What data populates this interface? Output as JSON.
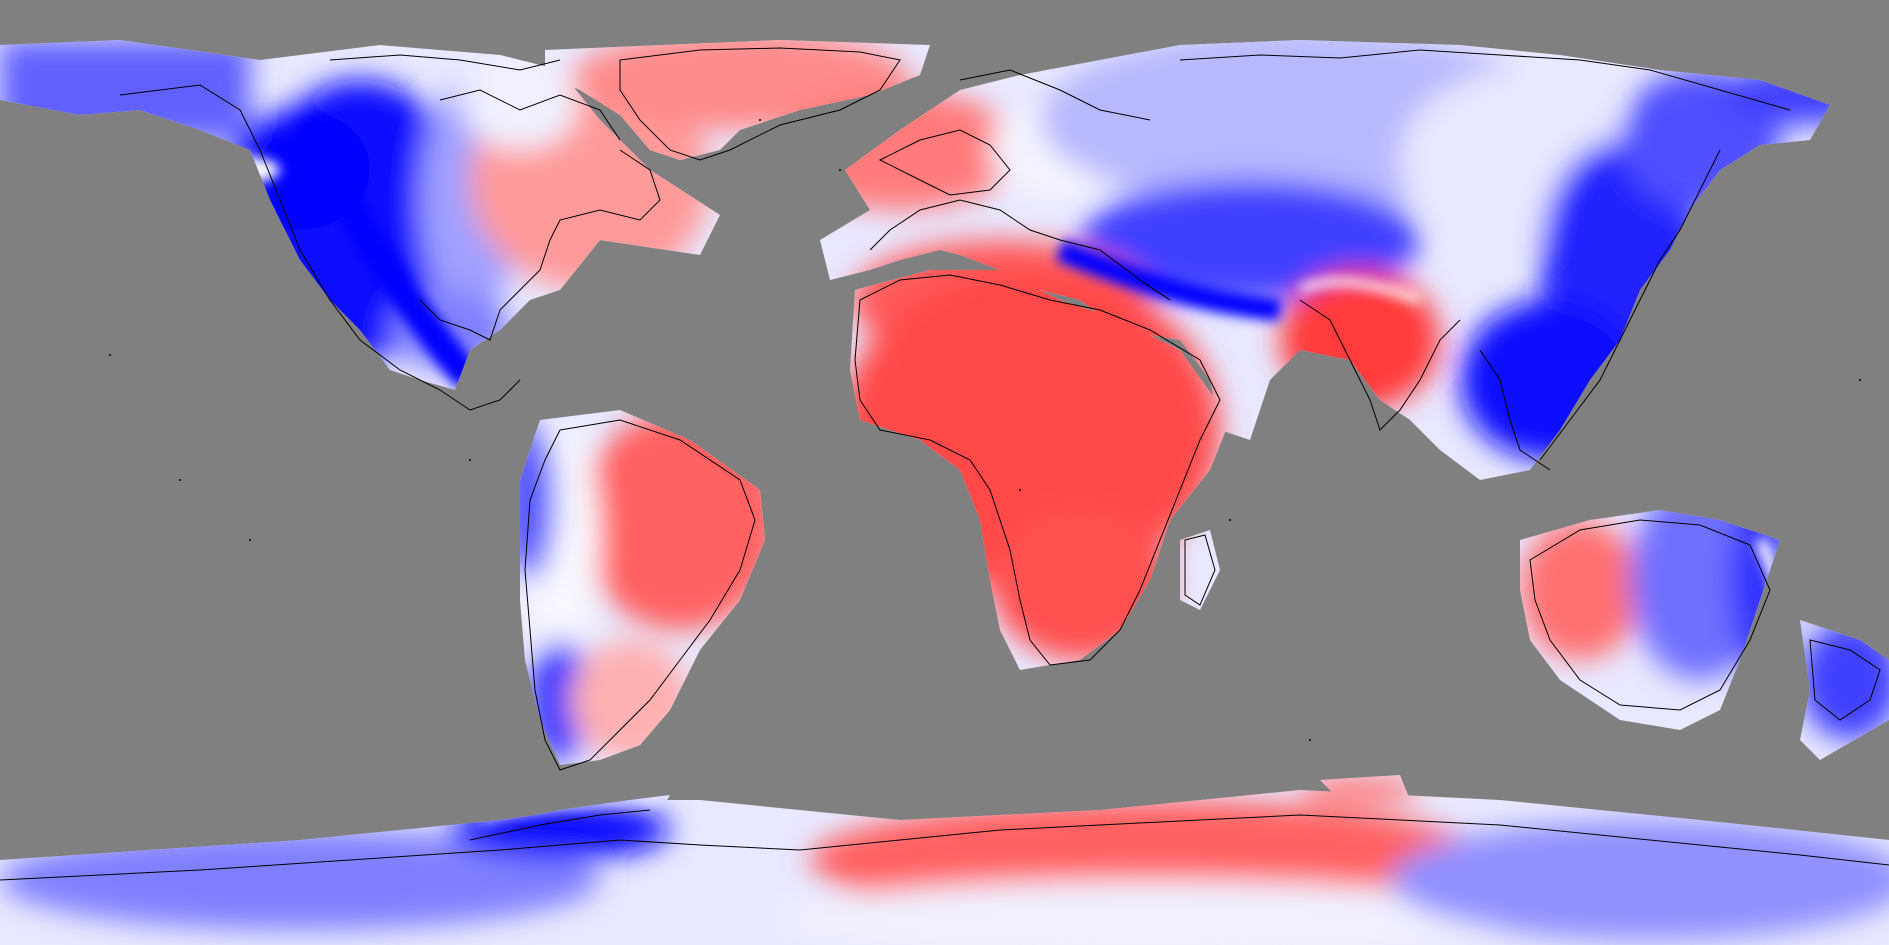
{
  "map": {
    "projection": "equirectangular",
    "ocean_color": "#808080",
    "colorscale": {
      "type": "diverging",
      "negative": "#0000ff",
      "neutral": "#f4f4ff",
      "positive": "#ff4040"
    },
    "coastline_color": "#000000",
    "labels_visible": false
  }
}
